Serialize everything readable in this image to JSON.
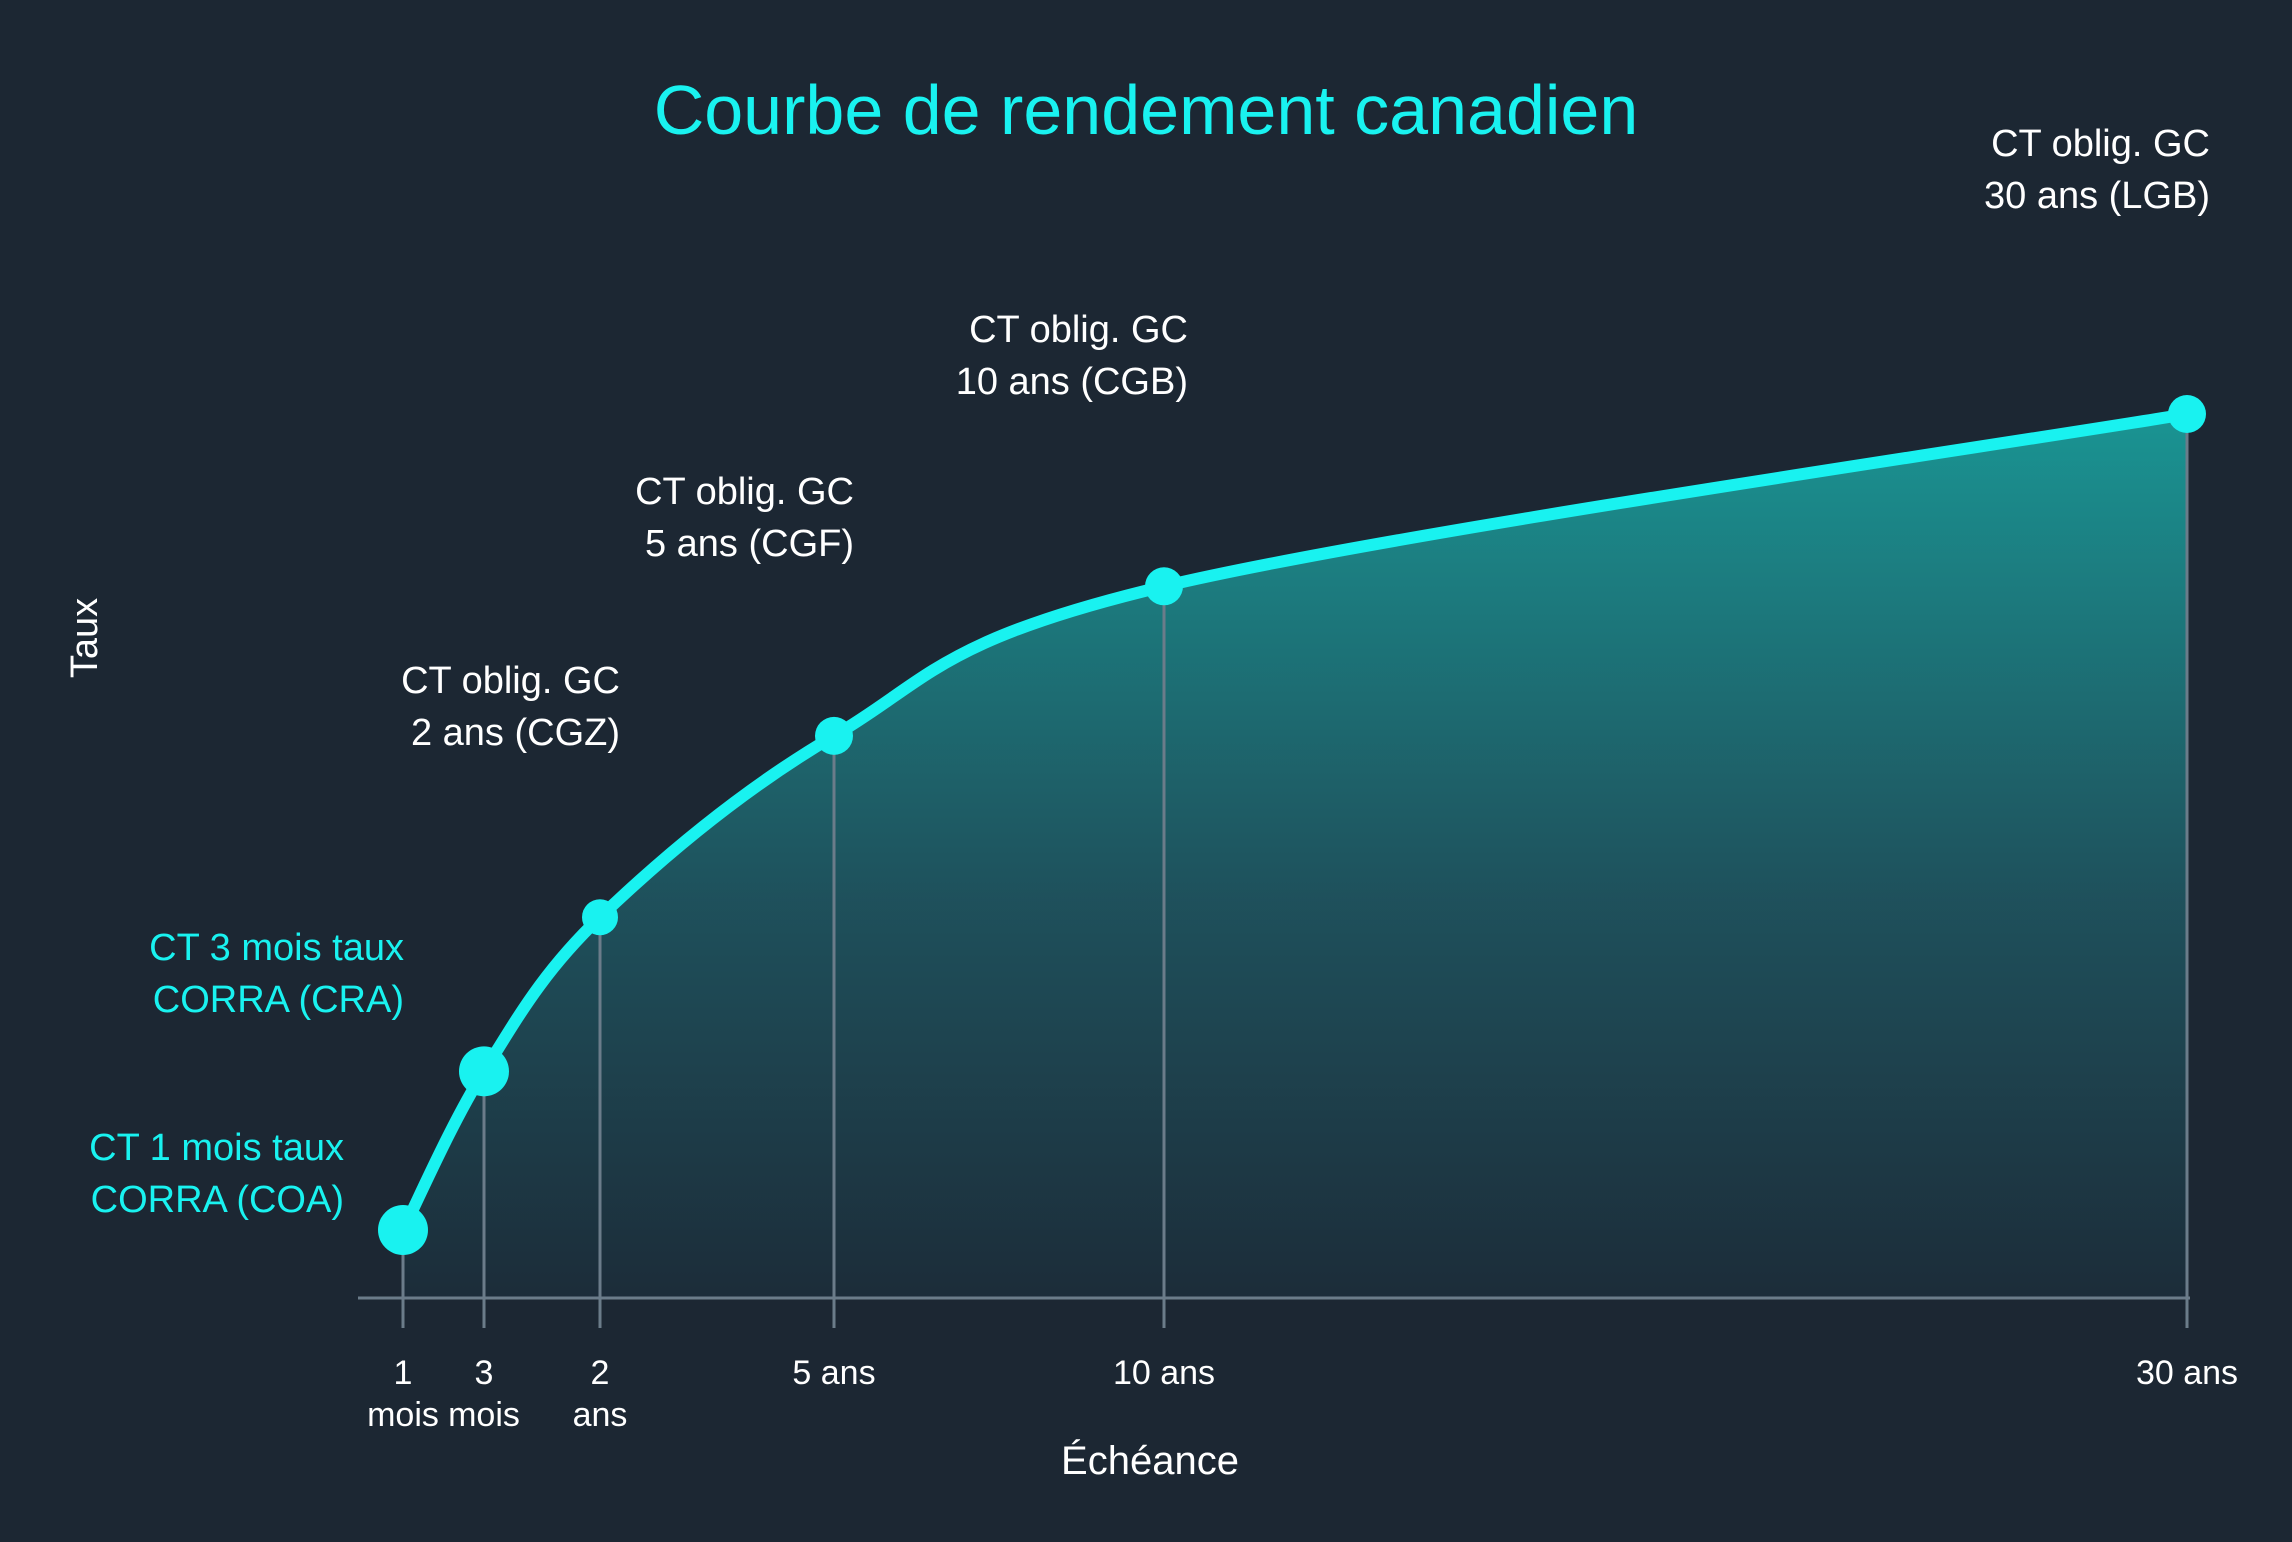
{
  "colors": {
    "background": "#1c2733",
    "accent": "#19f2f0",
    "grid": "#6b7c8a",
    "text": "#ffffff"
  },
  "chart_data": {
    "type": "area",
    "title": "Courbe de rendement canadien",
    "xlabel": "Échéance",
    "ylabel": "Taux",
    "grid": false,
    "points": [
      {
        "x": "1 mois",
        "tick": [
          "1",
          "mois"
        ],
        "label": [
          "CT 1 mois taux",
          "CORRA (COA)"
        ],
        "y": 0.75
      },
      {
        "x": "3 mois",
        "tick": [
          "3",
          "mois"
        ],
        "label": [
          "CT 3 mois taux",
          "CORRA (CRA)"
        ],
        "y": 2.5
      },
      {
        "x": "2 ans",
        "tick": [
          "2",
          "ans"
        ],
        "label": [
          "CT oblig. GC",
          "2 ans (CGZ)"
        ],
        "y": 4.2
      },
      {
        "x": "5 ans",
        "tick": [
          "5 ans"
        ],
        "label": [
          "CT oblig. GC",
          "5 ans (CGF)"
        ],
        "y": 6.2
      },
      {
        "x": "10 ans",
        "tick": [
          "10 ans"
        ],
        "label": [
          "CT oblig. GC",
          "10 ans (CGB)"
        ],
        "y": 7.85
      },
      {
        "x": "30 ans",
        "tick": [
          "30 ans"
        ],
        "label": [
          "CT oblig. GC",
          "30 ans (LGB)"
        ],
        "y": 9.75
      }
    ],
    "ylim": [
      0,
      12
    ]
  }
}
